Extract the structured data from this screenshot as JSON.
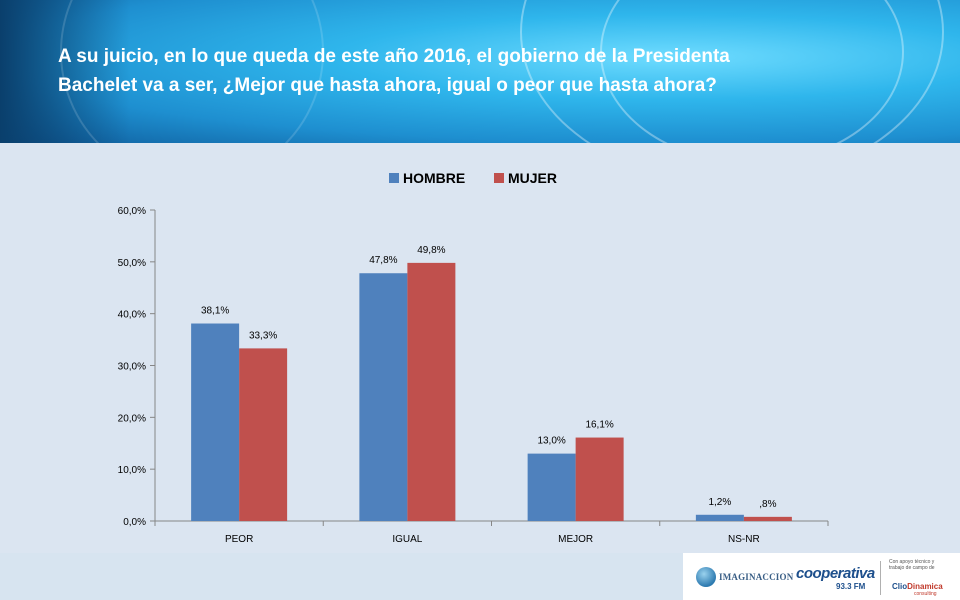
{
  "title": "A su juicio, en lo que queda de este año 2016,  el gobierno de la Presidenta\nBachelet va a ser, ¿Mejor que hasta ahora, igual o  peor que hasta ahora?",
  "colors": {
    "hombre": "#4f81bd",
    "mujer": "#c0504d",
    "axis": "#868686"
  },
  "chart_data": {
    "type": "bar",
    "title": "",
    "xlabel": "",
    "ylabel": "",
    "categories": [
      "PEOR",
      "IGUAL",
      "MEJOR",
      "NS-NR"
    ],
    "series": [
      {
        "name": "HOMBRE",
        "values": [
          38.1,
          47.8,
          13.0,
          1.2
        ],
        "labels": [
          "38,1%",
          "47,8%",
          "13,0%",
          "1,2%"
        ]
      },
      {
        "name": "MUJER",
        "values": [
          33.3,
          49.8,
          16.1,
          0.8
        ],
        "labels": [
          "33,3%",
          "49,8%",
          "16,1%",
          ",8%"
        ]
      }
    ],
    "ylim": [
      0,
      60
    ],
    "yticks": [
      0,
      10,
      20,
      30,
      40,
      50,
      60
    ],
    "ytick_labels": [
      "0,0%",
      "10,0%",
      "20,0%",
      "30,0%",
      "40,0%",
      "50,0%",
      "60,0%"
    ],
    "legend_position": "top",
    "grid": false
  },
  "footer": {
    "logo1_text": "IMAGINACCION",
    "logo2_text": "cooperativa",
    "logo2_sub": "93.3 FM",
    "logo3_note": "Con apoyo técnico y trabajo de campo de",
    "logo3_text_a": "Clio",
    "logo3_text_b": "Dinamica",
    "logo3_sub": "consulting"
  }
}
